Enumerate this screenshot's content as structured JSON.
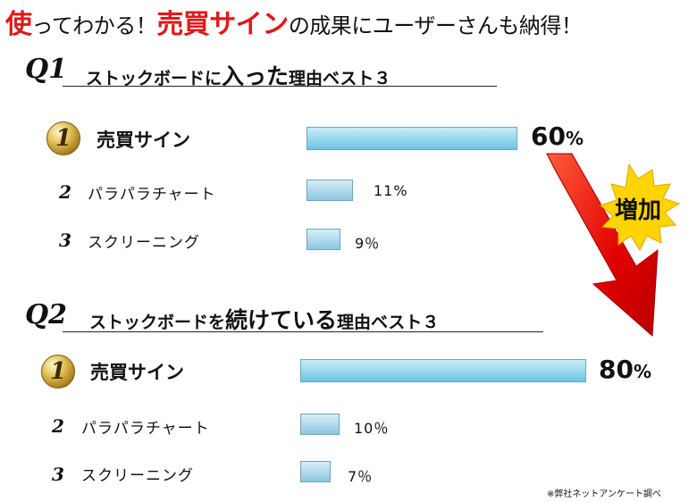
{
  "headline": {
    "part1": "使",
    "part2": "ってわかる！",
    "part3": "売買サイン",
    "part4": "の成果にユーザーさんも納得！"
  },
  "arrow_label": "増加",
  "footnote": "※弊社ネットアンケート調べ",
  "colors": {
    "accent": "#e01919",
    "bar": "#6ec4e4",
    "medal": "#d4b04a"
  },
  "chart_data": [
    {
      "type": "bar",
      "question": "Q1",
      "title_pre": "ストックボードに",
      "title_em": "入った",
      "title_post": "理由ベスト３",
      "ranks": [
        "1",
        "2",
        "3"
      ],
      "categories": [
        "売買サイン",
        "パラパラチャート",
        "スクリーニング"
      ],
      "values": [
        60,
        11,
        9
      ],
      "value_labels": [
        "60",
        "11%",
        "9％"
      ],
      "unit": "%",
      "xlim": [
        0,
        100
      ]
    },
    {
      "type": "bar",
      "question": "Q2",
      "title_pre": "ストックボードを",
      "title_em": "続けている",
      "title_post": "理由ベスト３",
      "ranks": [
        "1",
        "2",
        "3"
      ],
      "categories": [
        "売買サイン",
        "パラパラチャート",
        "スクリーニング"
      ],
      "values": [
        80,
        10,
        7
      ],
      "value_labels": [
        "80",
        "10％",
        "7％"
      ],
      "unit": "%",
      "xlim": [
        0,
        100
      ]
    }
  ]
}
